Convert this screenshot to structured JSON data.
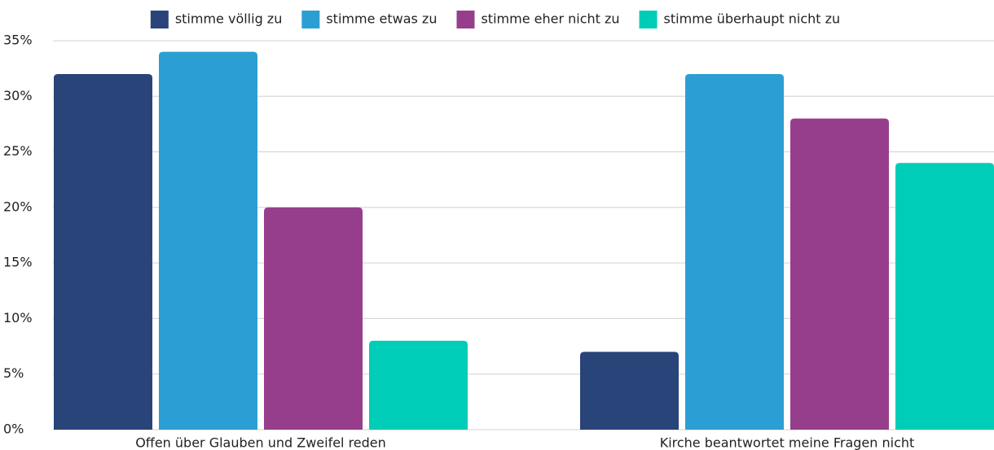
{
  "chart_data": {
    "type": "bar",
    "categories": [
      "Offen über Glauben und Zweifel reden",
      "Kirche beantwortet meine Fragen nicht"
    ],
    "series": [
      {
        "name": "stimme völlig zu",
        "color": "#284478",
        "values": [
          32,
          7
        ]
      },
      {
        "name": "stimme etwas zu",
        "color": "#2b9fd4",
        "values": [
          34,
          32
        ]
      },
      {
        "name": "stimme eher nicht zu",
        "color": "#963e8c",
        "values": [
          20,
          28
        ]
      },
      {
        "name": "stimme überhaupt nicht zu",
        "color": "#00cdb8",
        "values": [
          8,
          24
        ]
      }
    ],
    "ylim": [
      0,
      35
    ],
    "yticks": [
      {
        "value": 0,
        "label": "0%"
      },
      {
        "value": 5,
        "label": "5%"
      },
      {
        "value": 10,
        "label": "10%"
      },
      {
        "value": 15,
        "label": "15%"
      },
      {
        "value": 20,
        "label": "20%"
      },
      {
        "value": 25,
        "label": "25%"
      },
      {
        "value": 30,
        "label": "30%"
      },
      {
        "value": 35,
        "label": "35%"
      }
    ],
    "grid": true,
    "legend": "top"
  }
}
